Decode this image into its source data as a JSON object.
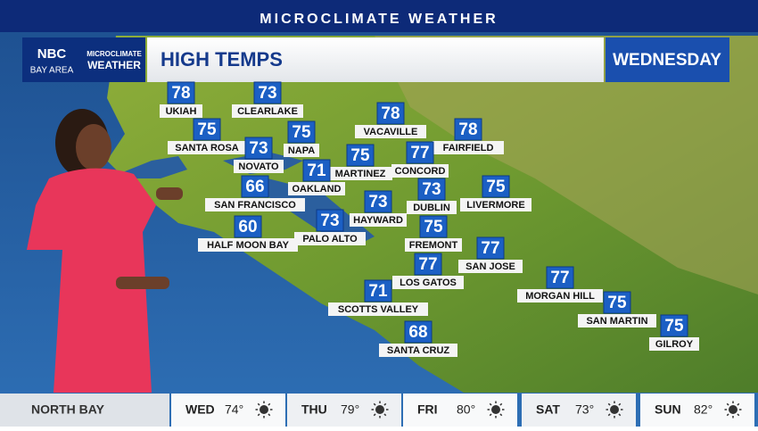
{
  "banner": "MICROCLIMATE WEATHER",
  "logo": {
    "network": "NBC",
    "region": "BAY AREA",
    "brand_line1": "MICROCLIMATE",
    "brand_line2": "WEATHER"
  },
  "header": {
    "title": "HIGH TEMPS",
    "day": "WEDNESDAY"
  },
  "cities": [
    {
      "name": "UKIAH",
      "temp": 78
    },
    {
      "name": "CLEARLAKE",
      "temp": 73
    },
    {
      "name": "VACAVILLE",
      "temp": 78
    },
    {
      "name": "SANTA ROSA",
      "temp": 75
    },
    {
      "name": "NAPA",
      "temp": 75
    },
    {
      "name": "FAIRFIELD",
      "temp": 78
    },
    {
      "name": "NOVATO",
      "temp": 73
    },
    {
      "name": "MARTINEZ",
      "temp": 75
    },
    {
      "name": "CONCORD",
      "temp": 77
    },
    {
      "name": "OAKLAND",
      "temp": 71
    },
    {
      "name": "SAN FRANCISCO",
      "temp": 66
    },
    {
      "name": "LIVERMORE",
      "temp": 75
    },
    {
      "name": "HAYWARD",
      "temp": 73
    },
    {
      "name": "DUBLIN",
      "temp": 73
    },
    {
      "name": "HALF MOON BAY",
      "temp": 60
    },
    {
      "name": "PALO ALTO",
      "temp": 73
    },
    {
      "name": "FREMONT",
      "temp": 75
    },
    {
      "name": "SAN JOSE",
      "temp": 77
    },
    {
      "name": "LOS GATOS",
      "temp": 77
    },
    {
      "name": "MORGAN HILL",
      "temp": 77
    },
    {
      "name": "SCOTTS VALLEY",
      "temp": 71
    },
    {
      "name": "SAN MARTIN",
      "temp": 75
    },
    {
      "name": "GILROY",
      "temp": 75
    },
    {
      "name": "SANTA CRUZ",
      "temp": 68
    }
  ],
  "footer": {
    "region": "NORTH BAY",
    "forecast": [
      {
        "day": "WED",
        "temp": "74°"
      },
      {
        "day": "THU",
        "temp": "79°"
      },
      {
        "day": "FRI",
        "temp": "80°"
      },
      {
        "day": "SAT",
        "temp": "73°"
      },
      {
        "day": "SUN",
        "temp": "82°"
      }
    ]
  }
}
